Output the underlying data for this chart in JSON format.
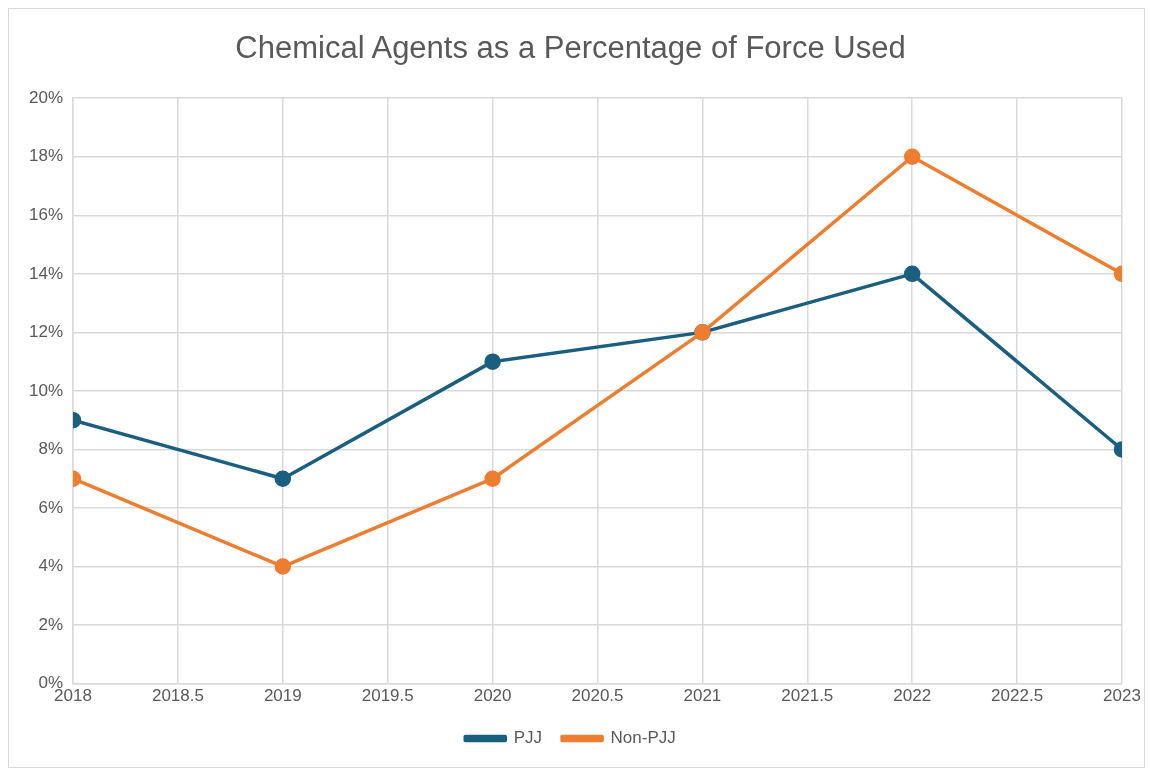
{
  "chart_data": {
    "type": "line",
    "title": "Chemical Agents as a Percentage of Force Used",
    "x": [
      2018,
      2019,
      2020,
      2021,
      2022,
      2023
    ],
    "series": [
      {
        "name": "PJJ",
        "color": "#1a5e80",
        "values": [
          9,
          7,
          11,
          12,
          14,
          8
        ]
      },
      {
        "name": "Non-PJJ",
        "color": "#ed7d31",
        "values": [
          7,
          4,
          7,
          12,
          18,
          14
        ]
      }
    ],
    "xlim": [
      2018,
      2023
    ],
    "xticks": [
      2018,
      2018.5,
      2019,
      2019.5,
      2020,
      2020.5,
      2021,
      2021.5,
      2022,
      2022.5,
      2023
    ],
    "ylim": [
      0,
      20
    ],
    "yticks": [
      {
        "value": 0,
        "label": "0%"
      },
      {
        "value": 2,
        "label": "2%"
      },
      {
        "value": 4,
        "label": "4%"
      },
      {
        "value": 6,
        "label": "6%"
      },
      {
        "value": 8,
        "label": "8%"
      },
      {
        "value": 10,
        "label": "10%"
      },
      {
        "value": 12,
        "label": "12%"
      },
      {
        "value": 14,
        "label": "14%"
      },
      {
        "value": 16,
        "label": "16%"
      },
      {
        "value": 18,
        "label": "18%"
      },
      {
        "value": 20,
        "label": "20%"
      }
    ],
    "grid": true,
    "legend": "bottom",
    "marker": "circle",
    "line_style": "solid"
  }
}
